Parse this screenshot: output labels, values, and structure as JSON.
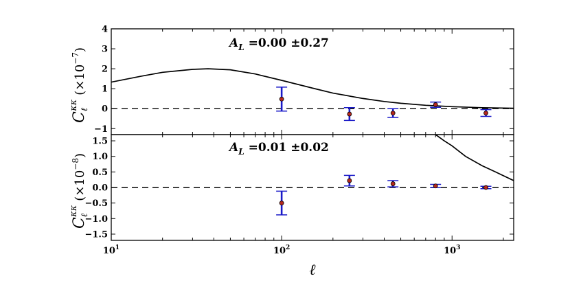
{
  "chart_data": [
    {
      "type": "scatter",
      "panel": "top",
      "ylabel": "C_ℓ^{κκ} (×10^{-7})",
      "ylabel_main": "C",
      "ylabel_sub": "ℓ",
      "ylabel_sup": "κκ",
      "ylabel_scale": "(×10",
      "ylabel_scale_exp": "−7",
      "ylabel_scale_close": ")",
      "annotation": "A_L = 0.00 ±0.27",
      "annotation_parts": {
        "symbol": "A",
        "subscript": "L",
        "value": "=0.00 ±0.27"
      },
      "xscale": "log",
      "xlim": [
        10,
        2300
      ],
      "ylim": [
        -1.3,
        4
      ],
      "yticks": [
        -1,
        0,
        1,
        2,
        3,
        4
      ],
      "ytick_labels": [
        "−1",
        "0",
        "1",
        "2",
        "3",
        "4"
      ],
      "zero_line": "dashed",
      "series": [
        {
          "kind": "theory_curve",
          "x": [
            10,
            15,
            20,
            30,
            37,
            50,
            70,
            100,
            150,
            200,
            300,
            400,
            500,
            700,
            1000,
            1500,
            2300
          ],
          "y": [
            1.33,
            1.63,
            1.82,
            1.97,
            2.0,
            1.95,
            1.74,
            1.42,
            1.04,
            0.78,
            0.51,
            0.36,
            0.27,
            0.17,
            0.1,
            0.05,
            0.02
          ]
        },
        {
          "kind": "data_points",
          "x": [
            100,
            250,
            450,
            800,
            1580
          ],
          "y": [
            0.48,
            -0.27,
            -0.22,
            0.2,
            -0.22
          ],
          "yerr": [
            0.6,
            0.32,
            0.22,
            0.13,
            0.17
          ]
        }
      ]
    },
    {
      "type": "scatter",
      "panel": "bottom",
      "ylabel": "C_ℓ^{κκ} (×10^{-8})",
      "ylabel_main": "C",
      "ylabel_sub": "ℓ",
      "ylabel_sup": "κκ",
      "ylabel_scale": "(×10",
      "ylabel_scale_exp": "−8",
      "ylabel_scale_close": ")",
      "xlabel": "ℓ",
      "annotation": "A_L = 0.01 ±0.02",
      "annotation_parts": {
        "symbol": "A",
        "subscript": "L",
        "value": "=0.01 ±0.02"
      },
      "xscale": "log",
      "xlim": [
        10,
        2300
      ],
      "ylim": [
        -1.7,
        1.7
      ],
      "yticks": [
        -1.5,
        -1.0,
        -0.5,
        0.0,
        0.5,
        1.0,
        1.5
      ],
      "ytick_labels": [
        "−1.5",
        "−1.0",
        "−0.5",
        "0.0",
        "0.5",
        "1.0",
        "1.5"
      ],
      "xticks": [
        10,
        100,
        1000
      ],
      "xtick_labels": [
        {
          "base": "10",
          "exp": "1"
        },
        {
          "base": "10",
          "exp": "2"
        },
        {
          "base": "10",
          "exp": "3"
        }
      ],
      "zero_line": "dashed",
      "series": [
        {
          "kind": "theory_curve",
          "x": [
            800,
            900,
            1000,
            1200,
            1500,
            1800,
            2300
          ],
          "y": [
            1.7,
            1.5,
            1.34,
            1.0,
            0.7,
            0.5,
            0.22
          ]
        },
        {
          "kind": "data_points",
          "x": [
            100,
            250,
            450,
            800,
            1580
          ],
          "y": [
            -0.5,
            0.22,
            0.12,
            0.05,
            0.0
          ],
          "yerr": [
            0.38,
            0.17,
            0.1,
            0.05,
            0.04
          ]
        }
      ]
    }
  ],
  "colors": {
    "curve": "#000000",
    "errorbar": "#1a1ac8",
    "marker_fill": "#b4281e",
    "marker_edge": "#000000",
    "axes": "#000000"
  }
}
